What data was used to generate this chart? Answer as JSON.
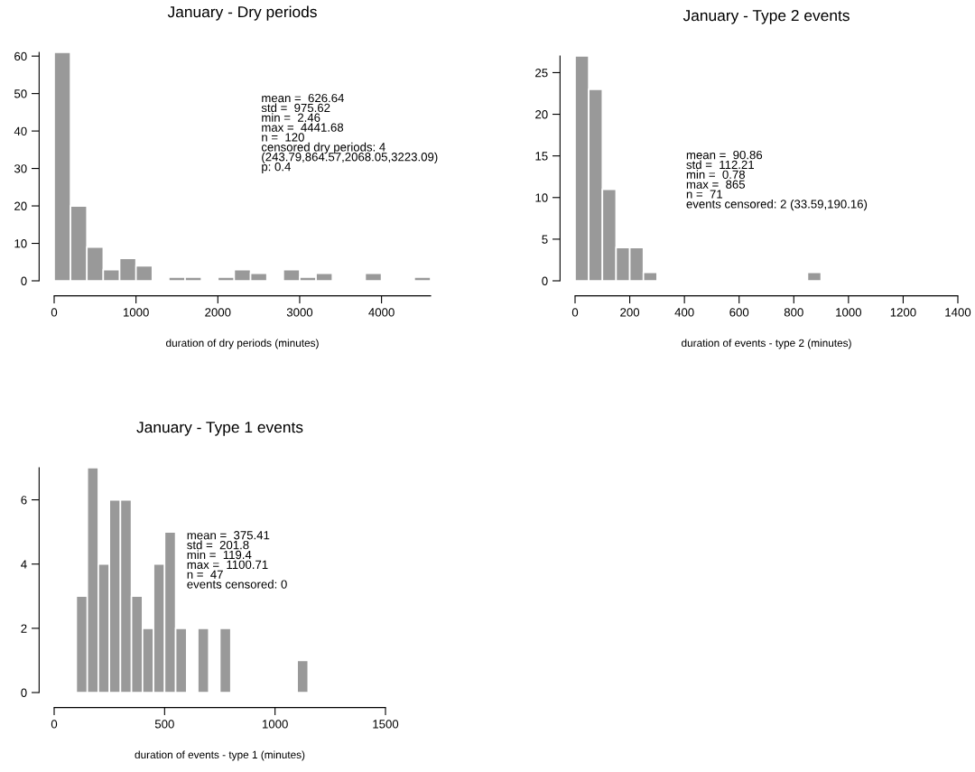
{
  "chart_data": [
    {
      "type": "histogram",
      "title": "January - Dry periods",
      "xlabel": "duration of dry periods (minutes)",
      "bins": [
        0,
        200,
        400,
        600,
        800,
        1000,
        1200,
        1400,
        1600,
        1800,
        2000,
        2200,
        2400,
        2600,
        2800,
        3000,
        3200,
        3400,
        3600,
        3800,
        4000,
        4200,
        4400,
        4600
      ],
      "values": [
        61,
        20,
        9,
        3,
        6,
        4,
        0,
        1,
        1,
        0,
        1,
        3,
        2,
        0,
        3,
        1,
        2,
        0,
        0,
        2,
        0,
        0,
        1
      ],
      "color": "#999999",
      "xlim": [
        0,
        4600
      ],
      "xticks": [
        0,
        1000,
        2000,
        3000,
        4000
      ],
      "ylim": [
        0,
        61
      ],
      "yticks": [
        0,
        10,
        20,
        30,
        40,
        50,
        60
      ],
      "grid": false,
      "annotations": [
        "mean =  626.64\nstd =  975.62\nmin =  2.46\nmax =  4441.68\nn =  120\ncensored dry periods: 4\n(243.79,864.57,2068.05,3223.09)\np: 0.4"
      ]
    },
    {
      "type": "histogram",
      "title": "January - Type 2 events",
      "xlabel": "duration of events - type 2 (minutes)",
      "bins": [
        0,
        50,
        100,
        150,
        200,
        250,
        300,
        350,
        400,
        450,
        500,
        550,
        600,
        650,
        700,
        750,
        800,
        850,
        900
      ],
      "values": [
        27,
        23,
        11,
        4,
        4,
        1,
        0,
        0,
        0,
        0,
        0,
        0,
        0,
        0,
        0,
        0,
        0,
        1
      ],
      "color": "#999999",
      "xlim": [
        0,
        1400
      ],
      "xticks": [
        0,
        200,
        400,
        600,
        800,
        1000,
        1200,
        1400
      ],
      "ylim": [
        0,
        27
      ],
      "yticks": [
        0,
        5,
        10,
        15,
        20,
        25
      ],
      "grid": false,
      "annotations": [
        "mean =  90.86\nstd =  112.21\nmin =  0.78\nmax =  865\nn =  71\nevents censored: 2 (33.59,190.16)"
      ]
    },
    {
      "type": "histogram",
      "title": "January - Type 1 events",
      "xlabel": "duration of events - type 1 (minutes)",
      "bins": [
        100,
        150,
        200,
        250,
        300,
        350,
        400,
        450,
        500,
        550,
        600,
        650,
        700,
        750,
        800,
        850,
        900,
        950,
        1000,
        1050,
        1100,
        1150
      ],
      "values": [
        3,
        7,
        4,
        6,
        6,
        3,
        2,
        4,
        5,
        2,
        0,
        2,
        0,
        2,
        0,
        0,
        0,
        0,
        0,
        0,
        1
      ],
      "color": "#999999",
      "xlim": [
        0,
        1500
      ],
      "xticks": [
        0,
        500,
        1000,
        1500
      ],
      "ylim": [
        0,
        7
      ],
      "yticks": [
        0,
        2,
        4,
        6
      ],
      "grid": false,
      "annotations": [
        "mean =  375.41\nstd =  201.8\nmin =  119.4\nmax =  1100.71\nn =  47\nevents censored: 0"
      ]
    }
  ]
}
